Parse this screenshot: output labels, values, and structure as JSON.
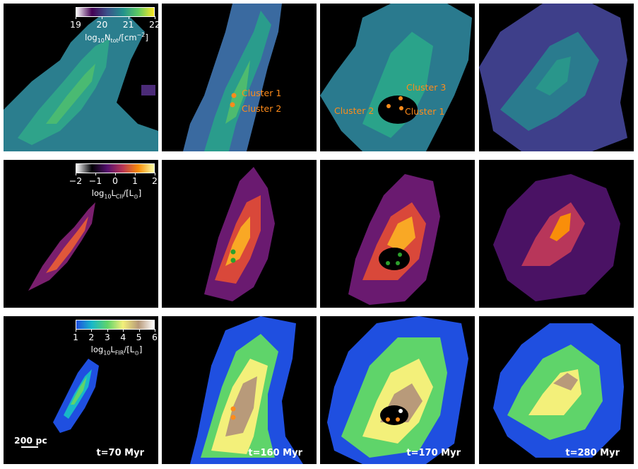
{
  "rows": [
    {
      "name": "column-density",
      "colorbar": {
        "ticks": [
          "19",
          "20",
          "21",
          "22"
        ],
        "label_prefix": "log",
        "label_base": "10",
        "label_main": "N",
        "label_sub": "tot",
        "label_mid": "/[cm",
        "label_sup": "−2",
        "label_end": "]",
        "colors": [
          "#ffffff",
          "#440154",
          "#3b528b",
          "#21918c",
          "#5ec962",
          "#fde725"
        ]
      }
    },
    {
      "name": "cii-luminosity",
      "colorbar": {
        "ticks": [
          "−2",
          "−1",
          "0",
          "1",
          "2"
        ],
        "label_prefix": "log",
        "label_base": "10",
        "label_main": "L",
        "label_sub": "CII",
        "label_mid": "/[L",
        "label_sup": "",
        "label_sub2": "⊙",
        "label_end": "]",
        "colors": [
          "#ffffff",
          "#000004",
          "#56106e",
          "#bb3754",
          "#f98e09",
          "#fcffa4"
        ]
      }
    },
    {
      "name": "fir-luminosity",
      "colorbar": {
        "ticks": [
          "1",
          "2",
          "3",
          "4",
          "5",
          "6"
        ],
        "label_prefix": "log",
        "label_base": "10",
        "label_main": "L",
        "label_sub": "FIR",
        "label_mid": "/[L",
        "label_sup": "",
        "label_sub2": "⊙",
        "label_end": "]",
        "colors": [
          "#1f4fe0",
          "#18b8c8",
          "#5fd46a",
          "#f3f07a",
          "#b89a7a",
          "#ffffff"
        ]
      }
    }
  ],
  "annotations": {
    "panel_0_1": [
      "Cluster 1",
      "Cluster 2"
    ],
    "panel_0_2": [
      "Cluster 3",
      "Cluster 2",
      "Cluster 1"
    ]
  },
  "times": [
    "t=70 Myr",
    "t=160 Myr",
    "t=170 Myr",
    "t=280 Myr"
  ],
  "scale_bar": "200 pc",
  "marker_colors": {
    "row0": "#ff8c1a",
    "row1": "#2ca02c",
    "row2": "#ff8c1a"
  }
}
